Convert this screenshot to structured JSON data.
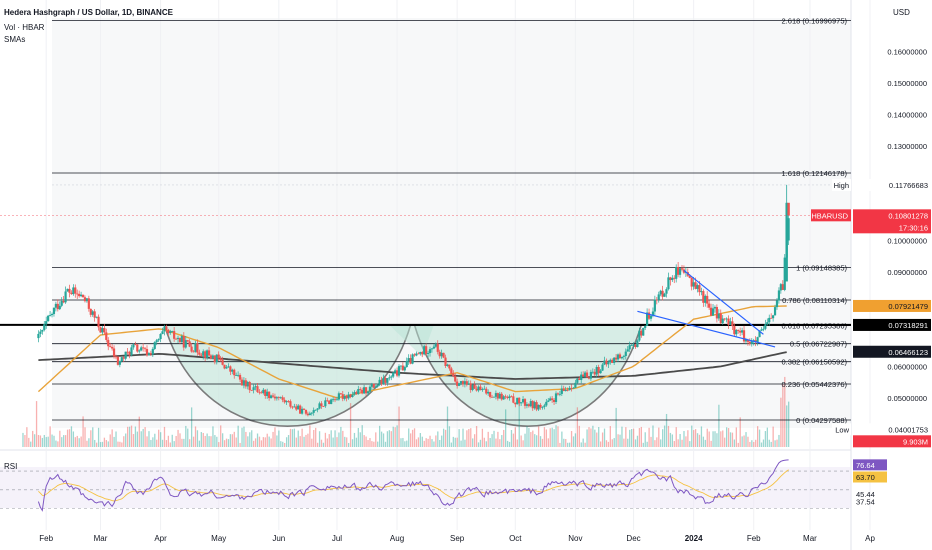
{
  "header": {
    "title": "Hedera Hashgraph / US Dollar, 1D, BINANCE",
    "vol_label": "Vol · HBAR",
    "sma_label": "SMAs",
    "currency": "USD"
  },
  "rsi": {
    "label": "RSI",
    "values_shown": [
      "76.64",
      "63.70",
      "45.44",
      "37.54"
    ],
    "levels": [
      70,
      50,
      30
    ]
  },
  "price_axis": {
    "ticks": [
      "0.16000000",
      "0.15000000",
      "0.14000000",
      "0.13000000",
      "0.10000000",
      "0.09000000",
      "0.06000000",
      "0.05000000"
    ],
    "ylim": [
      0.036,
      0.175
    ]
  },
  "time_axis": {
    "labels": [
      "Feb",
      "Mar",
      "Apr",
      "May",
      "Jun",
      "Jul",
      "Aug",
      "Sep",
      "Oct",
      "Nov",
      "Dec",
      "2024",
      "Feb",
      "Mar",
      "Ap"
    ]
  },
  "price_tags": {
    "high": {
      "label": "High",
      "value": "0.11766683"
    },
    "symbol": {
      "label": "HBARUSD",
      "value": "0.10801278",
      "countdown": "17:30:16",
      "color": "#f23645"
    },
    "sma_short": {
      "value": "0.07921479",
      "color": "#f0a030"
    },
    "neck": {
      "value": "0.07318291",
      "color": "#000000"
    },
    "sma_long": {
      "value": "0.06466123",
      "color": "#131722"
    },
    "low": {
      "label": "Low",
      "value": "0.04001753"
    },
    "volume": {
      "value": "9.903M",
      "color": "#f23645"
    }
  },
  "chart_data": {
    "type": "candlestick",
    "title": "Hedera Hashgraph / US Dollar, 1D, BINANCE",
    "fibonacci_levels": [
      {
        "label": "2.618 (0.16996975)",
        "value": 0.16996975
      },
      {
        "label": "1.618 (0.12146178)",
        "value": 0.12146178
      },
      {
        "label": "1 (0.09148385)",
        "value": 0.09148385
      },
      {
        "label": "0.786 (0.08110314)",
        "value": 0.08110314
      },
      {
        "label": "0.618 (0.07295386)",
        "value": 0.07295386
      },
      {
        "label": "0.5 (0.06722987)",
        "value": 0.06722987
      },
      {
        "label": "0.382 (0.06150592)",
        "value": 0.06150592
      },
      {
        "label": "0.236 (0.05442376)",
        "value": 0.05442376
      },
      {
        "label": "0 (0.04297588)",
        "value": 0.04297588
      }
    ],
    "close_path": [
      [
        "2023-01-28",
        0.069
      ],
      [
        "2023-02-05",
        0.078
      ],
      [
        "2023-02-12",
        0.084
      ],
      [
        "2023-02-20",
        0.082
      ],
      [
        "2023-03-02",
        0.071
      ],
      [
        "2023-03-10",
        0.061
      ],
      [
        "2023-03-18",
        0.066
      ],
      [
        "2023-03-26",
        0.064
      ],
      [
        "2023-04-03",
        0.071
      ],
      [
        "2023-04-15",
        0.067
      ],
      [
        "2023-05-01",
        0.062
      ],
      [
        "2023-05-15",
        0.054
      ],
      [
        "2023-06-01",
        0.05
      ],
      [
        "2023-06-15",
        0.045
      ],
      [
        "2023-06-30",
        0.05
      ],
      [
        "2023-07-14",
        0.052
      ],
      [
        "2023-07-28",
        0.056
      ],
      [
        "2023-08-10",
        0.063
      ],
      [
        "2023-08-20",
        0.067
      ],
      [
        "2023-09-01",
        0.055
      ],
      [
        "2023-09-15",
        0.052
      ],
      [
        "2023-10-01",
        0.049
      ],
      [
        "2023-10-15",
        0.047
      ],
      [
        "2023-11-01",
        0.055
      ],
      [
        "2023-11-15",
        0.06
      ],
      [
        "2023-12-01",
        0.066
      ],
      [
        "2023-12-10",
        0.078
      ],
      [
        "2023-12-22",
        0.09
      ],
      [
        "2024-01-01",
        0.087
      ],
      [
        "2024-01-10",
        0.078
      ],
      [
        "2024-01-22",
        0.072
      ],
      [
        "2024-02-01",
        0.067
      ],
      [
        "2024-02-10",
        0.075
      ],
      [
        "2024-02-16",
        0.086
      ],
      [
        "2024-02-19",
        0.108
      ]
    ],
    "sma_short_path": [
      [
        "2023-01-28",
        0.052
      ],
      [
        "2023-03-01",
        0.07
      ],
      [
        "2023-04-01",
        0.072
      ],
      [
        "2023-05-01",
        0.066
      ],
      [
        "2023-06-01",
        0.056
      ],
      [
        "2023-07-01",
        0.05
      ],
      [
        "2023-08-01",
        0.054
      ],
      [
        "2023-09-01",
        0.058
      ],
      [
        "2023-10-01",
        0.052
      ],
      [
        "2023-11-01",
        0.053
      ],
      [
        "2023-12-01",
        0.06
      ],
      [
        "2024-01-01",
        0.075
      ],
      [
        "2024-02-01",
        0.079
      ],
      [
        "2024-02-19",
        0.0792
      ]
    ],
    "sma_long_path": [
      [
        "2023-01-28",
        0.062
      ],
      [
        "2023-04-01",
        0.064
      ],
      [
        "2023-06-01",
        0.061
      ],
      [
        "2023-08-01",
        0.058
      ],
      [
        "2023-10-01",
        0.056
      ],
      [
        "2023-12-01",
        0.057
      ],
      [
        "2024-01-15",
        0.06
      ],
      [
        "2024-02-19",
        0.0647
      ]
    ],
    "neckline": 0.07318291,
    "ylim": [
      0.036,
      0.175
    ]
  }
}
